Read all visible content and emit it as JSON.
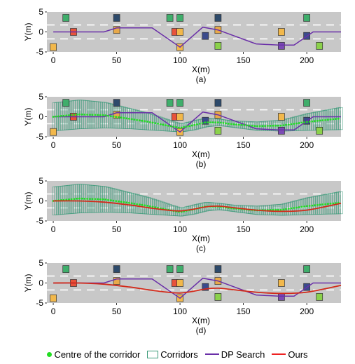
{
  "chart_data": [
    {
      "type": "line",
      "panel_label": "(a)",
      "xlabel": "X(m)",
      "ylabel": "Y(m)",
      "xlim": [
        -5,
        227
      ],
      "ylim": [
        -5,
        5
      ],
      "xticks": [
        0,
        50,
        100,
        150,
        200
      ],
      "yticks": [
        5,
        0,
        -5
      ],
      "road_lanes": [
        -1.75,
        1.75
      ],
      "obstacles": [
        {
          "x": 10,
          "y": 3.5,
          "color": "#3fae6b"
        },
        {
          "x": 16,
          "y": 0,
          "color": "#e8523a"
        },
        {
          "x": 0,
          "y": -3.8,
          "color": "#f2b84b"
        },
        {
          "x": 50,
          "y": 3.5,
          "color": "#2d4a6b"
        },
        {
          "x": 50,
          "y": 0.5,
          "color": "#e8a94a"
        },
        {
          "x": 92,
          "y": 3.5,
          "color": "#3fae6b"
        },
        {
          "x": 96,
          "y": 0,
          "color": "#e8523a"
        },
        {
          "x": 100,
          "y": 0,
          "color": "#f2b84b"
        },
        {
          "x": 100,
          "y": 3.5,
          "color": "#3fae6b"
        },
        {
          "x": 100,
          "y": -3.8,
          "color": "#f2b84b"
        },
        {
          "x": 120,
          "y": -1,
          "color": "#3b4b8c"
        },
        {
          "x": 130,
          "y": 3.5,
          "color": "#2d4a6b"
        },
        {
          "x": 130,
          "y": 0.5,
          "color": "#e8a94a"
        },
        {
          "x": 130,
          "y": -3.5,
          "color": "#8bd14b"
        },
        {
          "x": 180,
          "y": 0,
          "color": "#f2b84b"
        },
        {
          "x": 180,
          "y": -3.5,
          "color": "#7b4bb3"
        },
        {
          "x": 200,
          "y": 3.5,
          "color": "#3fae6b"
        },
        {
          "x": 200,
          "y": -1,
          "color": "#3b4b8c"
        },
        {
          "x": 210,
          "y": -3.5,
          "color": "#8bd14b"
        }
      ],
      "dp_search": {
        "x": [
          0,
          40,
          50,
          78,
          100,
          118,
          130,
          160,
          178,
          190,
          205,
          227
        ],
        "y": [
          0,
          0,
          1,
          1,
          -3.8,
          1.2,
          0.5,
          -3,
          -3.3,
          -3.3,
          0,
          0
        ]
      }
    },
    {
      "type": "line",
      "panel_label": "(b)",
      "xlabel": "X(m)",
      "ylabel": "Y(m)",
      "xlim": [
        -5,
        227
      ],
      "ylim": [
        -5,
        5
      ],
      "xticks": [
        0,
        50,
        100,
        150,
        200
      ],
      "yticks": [
        5,
        0,
        -5
      ],
      "road_lanes": [
        -1.75,
        1.75
      ],
      "obstacles": [
        {
          "x": 10,
          "y": 3.5,
          "color": "#3fae6b"
        },
        {
          "x": 16,
          "y": 0,
          "color": "#e8523a"
        },
        {
          "x": 0,
          "y": -3.8,
          "color": "#f2b84b"
        },
        {
          "x": 50,
          "y": 3.5,
          "color": "#2d4a6b"
        },
        {
          "x": 50,
          "y": 0.5,
          "color": "#e8a94a"
        },
        {
          "x": 92,
          "y": 3.5,
          "color": "#3fae6b"
        },
        {
          "x": 96,
          "y": 0,
          "color": "#e8523a"
        },
        {
          "x": 100,
          "y": 0,
          "color": "#f2b84b"
        },
        {
          "x": 100,
          "y": 3.5,
          "color": "#3fae6b"
        },
        {
          "x": 100,
          "y": -3.8,
          "color": "#f2b84b"
        },
        {
          "x": 120,
          "y": -1,
          "color": "#3b4b8c"
        },
        {
          "x": 130,
          "y": 3.5,
          "color": "#2d4a6b"
        },
        {
          "x": 130,
          "y": 0.5,
          "color": "#e8a94a"
        },
        {
          "x": 130,
          "y": -3.5,
          "color": "#8bd14b"
        },
        {
          "x": 180,
          "y": 0,
          "color": "#f2b84b"
        },
        {
          "x": 180,
          "y": -3.5,
          "color": "#7b4bb3"
        },
        {
          "x": 200,
          "y": 3.5,
          "color": "#3fae6b"
        },
        {
          "x": 200,
          "y": -1,
          "color": "#3b4b8c"
        },
        {
          "x": 210,
          "y": -3.5,
          "color": "#8bd14b"
        }
      ],
      "dp_search": {
        "x": [
          0,
          40,
          50,
          78,
          100,
          118,
          130,
          160,
          178,
          190,
          205,
          227
        ],
        "y": [
          0,
          0,
          1,
          1,
          -3.8,
          1.2,
          0.5,
          -3,
          -3.3,
          -3.3,
          0,
          0
        ]
      },
      "corridors": {
        "x": [
          0,
          20,
          40,
          60,
          75,
          90,
          100,
          110,
          120,
          130,
          140,
          160,
          180,
          200,
          227
        ],
        "upper": [
          3.5,
          4.2,
          3.6,
          2.0,
          0.8,
          -0.8,
          -1.8,
          -1.0,
          -0.3,
          -0.6,
          -1.0,
          -1.3,
          -0.8,
          0.8,
          2.4
        ],
        "lower": [
          -3.5,
          -3.0,
          -2.8,
          -3.0,
          -3.3,
          -3.6,
          -3.8,
          -3.3,
          -2.5,
          -2.2,
          -2.6,
          -3.4,
          -3.6,
          -3.4,
          -3.2
        ]
      },
      "corridor_centre": {
        "x": [
          0,
          20,
          40,
          60,
          75,
          90,
          100,
          110,
          120,
          130,
          140,
          160,
          180,
          200,
          227
        ],
        "y": [
          0,
          0.6,
          0.4,
          -0.5,
          -1.25,
          -2.2,
          -2.8,
          -2.15,
          -1.4,
          -1.4,
          -1.8,
          -2.35,
          -2.2,
          -1.3,
          -0.4
        ]
      }
    },
    {
      "type": "line",
      "panel_label": "(c)",
      "xlabel": "X(m)",
      "ylabel": "Y(m)",
      "xlim": [
        -5,
        227
      ],
      "ylim": [
        -5,
        5
      ],
      "xticks": [
        0,
        50,
        100,
        150,
        200
      ],
      "yticks": [
        5,
        0,
        -5
      ],
      "road_lanes": [
        -1.75,
        1.75
      ],
      "corridors": {
        "x": [
          0,
          20,
          40,
          60,
          75,
          90,
          100,
          110,
          120,
          130,
          140,
          160,
          180,
          200,
          227
        ],
        "upper": [
          3.5,
          4.2,
          3.6,
          2.0,
          0.8,
          -0.8,
          -1.8,
          -1.0,
          -0.3,
          -0.6,
          -1.0,
          -1.3,
          -0.8,
          0.8,
          2.4
        ],
        "lower": [
          -3.5,
          -3.0,
          -2.8,
          -3.0,
          -3.3,
          -3.6,
          -3.8,
          -3.3,
          -2.5,
          -2.2,
          -2.6,
          -3.4,
          -3.6,
          -3.4,
          -3.2
        ]
      },
      "corridor_centre": {
        "x": [
          0,
          20,
          40,
          60,
          75,
          90,
          100,
          110,
          120,
          130,
          140,
          160,
          180,
          200,
          227
        ],
        "y": [
          0,
          0.6,
          0.4,
          -0.5,
          -1.25,
          -2.2,
          -2.8,
          -2.15,
          -1.4,
          -1.4,
          -1.8,
          -2.35,
          -2.2,
          -1.3,
          -0.4
        ]
      },
      "ours": {
        "x": [
          0,
          20,
          40,
          60,
          75,
          90,
          100,
          110,
          120,
          130,
          140,
          160,
          180,
          200,
          227
        ],
        "y": [
          0,
          0,
          -0.3,
          -1.0,
          -1.7,
          -2.3,
          -2.5,
          -2.1,
          -1.5,
          -1.3,
          -1.6,
          -2.3,
          -2.6,
          -2.3,
          -0.6
        ]
      }
    },
    {
      "type": "line",
      "panel_label": "(d)",
      "xlabel": "X(m)",
      "ylabel": "Y(m)",
      "xlim": [
        -5,
        227
      ],
      "ylim": [
        -5,
        5
      ],
      "xticks": [
        0,
        50,
        100,
        150,
        200
      ],
      "yticks": [
        5,
        0,
        -5
      ],
      "road_lanes": [
        -1.75,
        1.75
      ],
      "obstacles": [
        {
          "x": 10,
          "y": 3.5,
          "color": "#3fae6b"
        },
        {
          "x": 16,
          "y": 0,
          "color": "#e8523a"
        },
        {
          "x": 0,
          "y": -3.8,
          "color": "#f2b84b"
        },
        {
          "x": 50,
          "y": 3.5,
          "color": "#2d4a6b"
        },
        {
          "x": 50,
          "y": 0.5,
          "color": "#e8a94a"
        },
        {
          "x": 92,
          "y": 3.5,
          "color": "#3fae6b"
        },
        {
          "x": 96,
          "y": 0,
          "color": "#e8523a"
        },
        {
          "x": 100,
          "y": 0,
          "color": "#f2b84b"
        },
        {
          "x": 100,
          "y": 3.5,
          "color": "#3fae6b"
        },
        {
          "x": 100,
          "y": -3.8,
          "color": "#f2b84b"
        },
        {
          "x": 120,
          "y": -1,
          "color": "#3b4b8c"
        },
        {
          "x": 130,
          "y": 3.5,
          "color": "#2d4a6b"
        },
        {
          "x": 130,
          "y": 0.5,
          "color": "#e8a94a"
        },
        {
          "x": 130,
          "y": -3.5,
          "color": "#8bd14b"
        },
        {
          "x": 180,
          "y": 0,
          "color": "#f2b84b"
        },
        {
          "x": 180,
          "y": -3.5,
          "color": "#7b4bb3"
        },
        {
          "x": 200,
          "y": 3.5,
          "color": "#3fae6b"
        },
        {
          "x": 200,
          "y": -1,
          "color": "#3b4b8c"
        },
        {
          "x": 210,
          "y": -3.5,
          "color": "#8bd14b"
        }
      ],
      "dp_search": {
        "x": [
          0,
          40,
          50,
          78,
          100,
          118,
          130,
          160,
          178,
          190,
          205,
          227
        ],
        "y": [
          0,
          0,
          1,
          1,
          -3.8,
          1.2,
          0.5,
          -3,
          -3.3,
          -3.3,
          0,
          0
        ]
      },
      "ours": {
        "x": [
          0,
          20,
          40,
          60,
          75,
          90,
          100,
          110,
          120,
          130,
          140,
          160,
          180,
          200,
          227
        ],
        "y": [
          0,
          0,
          -0.3,
          -1.0,
          -1.7,
          -2.3,
          -2.5,
          -2.1,
          -1.5,
          -1.3,
          -1.6,
          -2.3,
          -2.6,
          -2.3,
          -0.6
        ]
      }
    }
  ],
  "legend": {
    "placement": "bottom",
    "items": [
      {
        "label": "Centre of the corridor",
        "kind": "dot",
        "color": "#22dd22"
      },
      {
        "label": "Corridors",
        "kind": "box",
        "color": "#3a9a78"
      },
      {
        "label": "DP Search",
        "kind": "line",
        "color": "#6a2fa8"
      },
      {
        "label": "Ours",
        "kind": "line",
        "color": "#ee2222"
      }
    ]
  },
  "colors": {
    "road": "#c8c8c8",
    "lane_marking": "#ffffff",
    "corridor": "#3a9a78",
    "centre": "#22dd22",
    "dp": "#6a2fa8",
    "ours": "#d22a1a"
  }
}
